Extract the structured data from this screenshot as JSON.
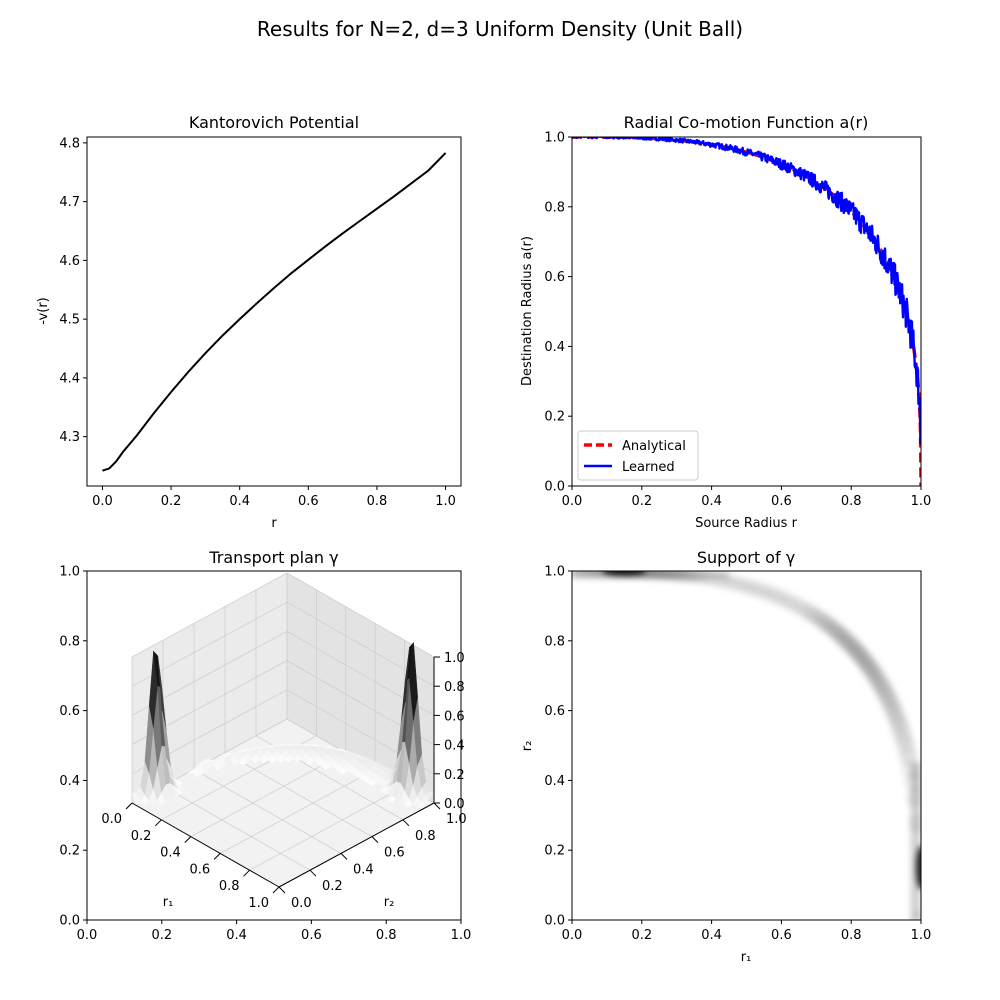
{
  "figure": {
    "suptitle": "Results for N=2, d=3 Uniform Density (Unit Ball)"
  },
  "chart_data": [
    {
      "type": "line",
      "title": "Kantorovich Potential",
      "xlabel": "r",
      "ylabel": "-v(r)",
      "xlim": [
        -0.045,
        1.045
      ],
      "ylim": [
        4.216,
        4.81
      ],
      "xticks": [
        0.0,
        0.2,
        0.4,
        0.6,
        0.8,
        1.0
      ],
      "xtick_labels": [
        "0.0",
        "0.2",
        "0.4",
        "0.6",
        "0.8",
        "1.0"
      ],
      "yticks": [
        4.3,
        4.4,
        4.5,
        4.6,
        4.7,
        4.8
      ],
      "ytick_labels": [
        "4.3",
        "4.4",
        "4.5",
        "4.6",
        "4.7",
        "4.8"
      ],
      "grid": false,
      "series": [
        {
          "color": "#000000",
          "x": [
            0.0,
            0.02,
            0.04,
            0.06,
            0.1,
            0.15,
            0.2,
            0.25,
            0.3,
            0.35,
            0.4,
            0.45,
            0.5,
            0.55,
            0.6,
            0.65,
            0.7,
            0.75,
            0.8,
            0.85,
            0.9,
            0.95,
            1.0
          ],
          "y": [
            4.242,
            4.246,
            4.258,
            4.274,
            4.302,
            4.34,
            4.376,
            4.41,
            4.442,
            4.472,
            4.5,
            4.527,
            4.553,
            4.578,
            4.601,
            4.624,
            4.646,
            4.667,
            4.688,
            4.709,
            4.731,
            4.753,
            4.783
          ]
        }
      ]
    },
    {
      "type": "line",
      "title": "Radial Co-motion Function a(r)",
      "xlabel": "Source Radius r",
      "ylabel": "Destination Radius a(r)",
      "xlim": [
        0,
        1
      ],
      "ylim": [
        0,
        1
      ],
      "xticks": [
        0.0,
        0.2,
        0.4,
        0.6,
        0.8,
        1.0
      ],
      "xtick_labels": [
        "0.0",
        "0.2",
        "0.4",
        "0.6",
        "0.8",
        "1.0"
      ],
      "yticks": [
        0.0,
        0.2,
        0.4,
        0.6,
        0.8,
        1.0
      ],
      "ytick_labels": [
        "0.0",
        "0.2",
        "0.4",
        "0.6",
        "0.8",
        "1.0"
      ],
      "legend_position": "lower-left",
      "grid": false,
      "series": [
        {
          "name": "Analytical",
          "color": "#ff0000",
          "style": "dashed",
          "formula": "a(r) = (1 - r^3)^(1/3)"
        },
        {
          "name": "Learned",
          "color": "#0000ff",
          "style": "solid",
          "formula": "a(r) = (1 - r^3)^(1/3) with jagged noise"
        }
      ]
    },
    {
      "type": "surface3d",
      "title": "Transport plan γ",
      "xlabel": "r₁",
      "ylabel": "r₂",
      "outer_xlim": [
        0,
        1
      ],
      "outer_ylim": [
        0,
        1
      ],
      "outer_ticks": [
        "0.0",
        "0.2",
        "0.4",
        "0.6",
        "0.8",
        "1.0"
      ],
      "r1_ticks": [
        "0.0",
        "0.2",
        "0.4",
        "0.6",
        "0.8",
        "1.0"
      ],
      "r2_ticks": [
        "0.0",
        "0.2",
        "0.4",
        "0.6",
        "0.8",
        "1.0"
      ],
      "z_ticks": [
        "0.0",
        "0.2",
        "0.4",
        "0.6",
        "0.8",
        "1.0"
      ],
      "peaks": [
        {
          "r1": 0.15,
          "r2": 1.0,
          "height": 1.0
        },
        {
          "r1": 1.0,
          "r2": 0.15,
          "height": 1.0
        }
      ]
    },
    {
      "type": "heatmap",
      "title": "Support of γ",
      "xlabel": "r₁",
      "ylabel": "r₂",
      "xlim": [
        0,
        1
      ],
      "ylim": [
        0,
        1
      ],
      "xticks": [
        0.0,
        0.2,
        0.4,
        0.6,
        0.8,
        1.0
      ],
      "xtick_labels": [
        "0.0",
        "0.2",
        "0.4",
        "0.6",
        "0.8",
        "1.0"
      ],
      "yticks": [
        0.0,
        0.2,
        0.4,
        0.6,
        0.8,
        1.0
      ],
      "ytick_labels": [
        "0.0",
        "0.2",
        "0.4",
        "0.6",
        "0.8",
        "1.0"
      ],
      "colormap": "gray_r",
      "support_curve": "r2 = (1 - r1^3)^(1/3)",
      "hotspots": [
        {
          "r1": 0.15,
          "r2": 1.0
        },
        {
          "r1": 1.0,
          "r2": 0.15
        }
      ]
    }
  ]
}
